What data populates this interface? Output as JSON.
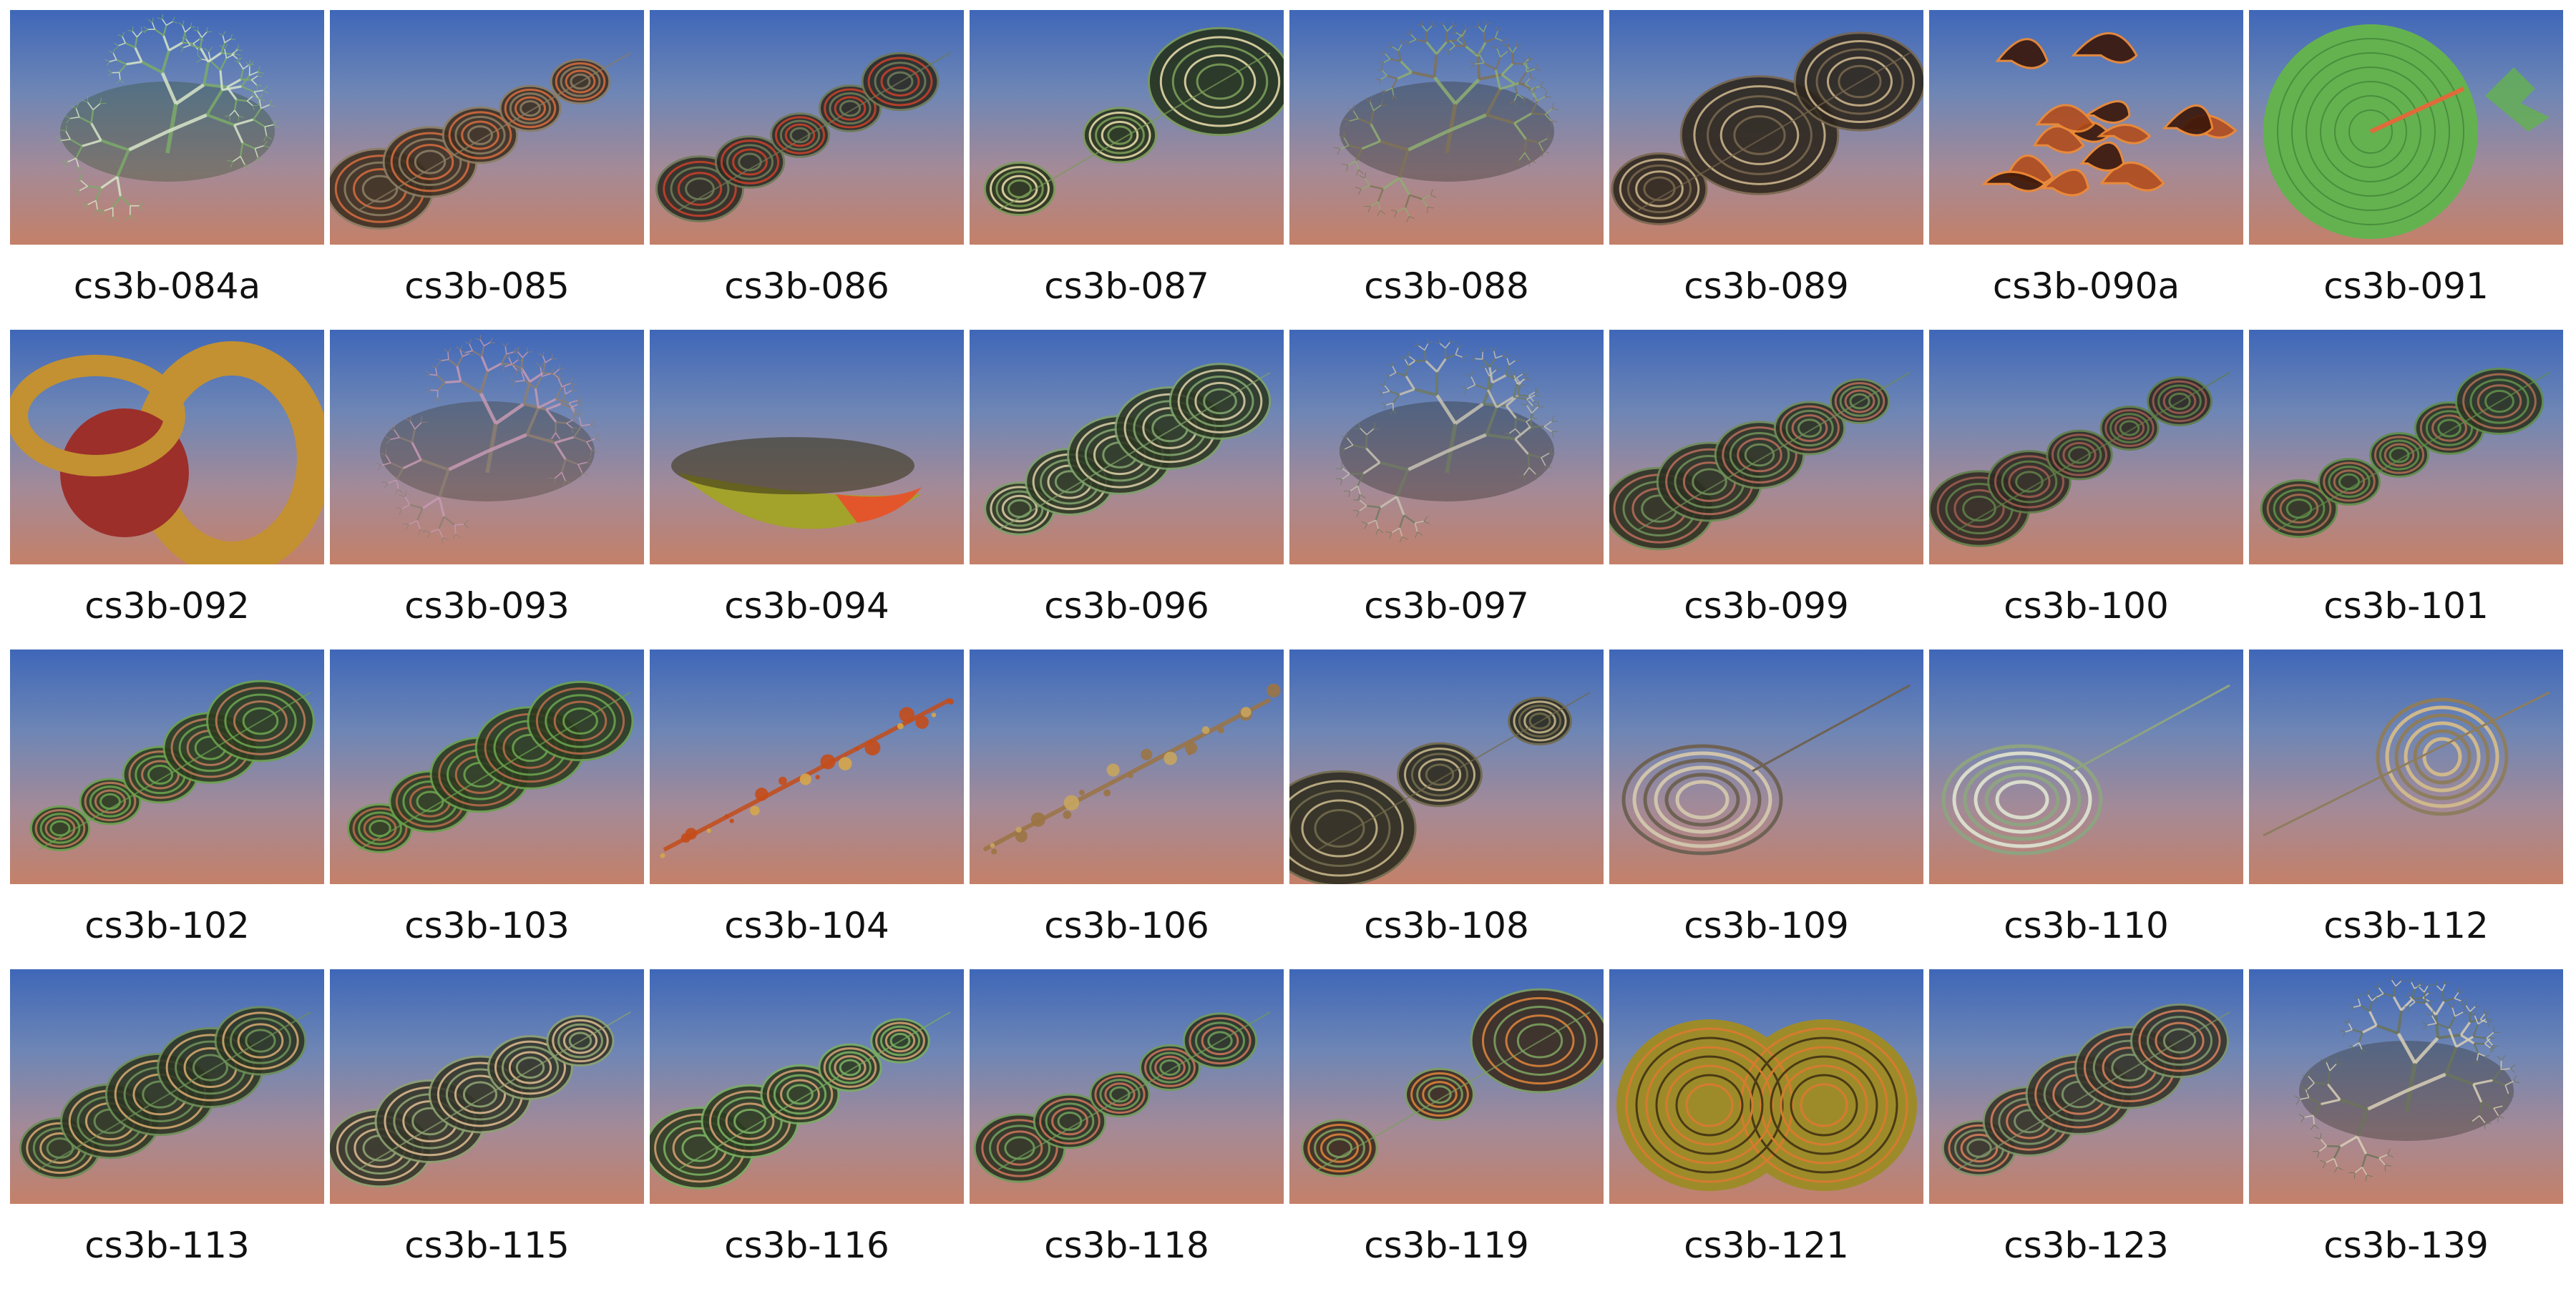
{
  "gallery": {
    "items": [
      {
        "label": "cs3b-084a",
        "palette": [
          "#2f4a24",
          "#7cab6a",
          "#d8e6c8"
        ],
        "shape": "branch-fractal-icon"
      },
      {
        "label": "cs3b-085",
        "palette": [
          "#3d3022",
          "#8b7d63",
          "#cf6a3e"
        ],
        "shape": "disk-stack-icon"
      },
      {
        "label": "cs3b-086",
        "palette": [
          "#2b2b24",
          "#6e7a58",
          "#c4402a"
        ],
        "shape": "disk-stack-icon"
      },
      {
        "label": "cs3b-087",
        "palette": [
          "#26331c",
          "#7a9b58",
          "#e2d7a6"
        ],
        "shape": "swirl-ring-icon"
      },
      {
        "label": "cs3b-088",
        "palette": [
          "#2b2a22",
          "#7f7357",
          "#8fae72"
        ],
        "shape": "branch-fractal-icon"
      },
      {
        "label": "cs3b-089",
        "palette": [
          "#2e271e",
          "#77664d",
          "#c9b38a"
        ],
        "shape": "swirl-ring-icon"
      },
      {
        "label": "cs3b-090a",
        "palette": [
          "#3a1609",
          "#b24d1d",
          "#f08a32"
        ],
        "shape": "flame-fractal-icon"
      },
      {
        "label": "cs3b-091",
        "palette": [
          "#2f6a2b",
          "#63b24f",
          "#e06a3a"
        ],
        "shape": "sphere-icon"
      },
      {
        "label": "cs3b-092",
        "palette": [
          "#5a3a10",
          "#c39131",
          "#9c2f2a"
        ],
        "shape": "torus-icon"
      },
      {
        "label": "cs3b-093",
        "palette": [
          "#3a3426",
          "#8d7f72",
          "#c79ab3"
        ],
        "shape": "branch-fractal-icon"
      },
      {
        "label": "cs3b-094",
        "palette": [
          "#3a351a",
          "#a3a22b",
          "#e3562c"
        ],
        "shape": "bowl-icon"
      },
      {
        "label": "cs3b-096",
        "palette": [
          "#2c3823",
          "#7ea16b",
          "#d4c8a2"
        ],
        "shape": "disk-stack-icon"
      },
      {
        "label": "cs3b-097",
        "palette": [
          "#25251f",
          "#6f7a63",
          "#c7c2b3"
        ],
        "shape": "branch-fractal-icon"
      },
      {
        "label": "cs3b-099",
        "palette": [
          "#2c3122",
          "#6f8d58",
          "#b36a59"
        ],
        "shape": "disk-stack-icon"
      },
      {
        "label": "cs3b-100",
        "palette": [
          "#2f2a22",
          "#5f7e48",
          "#9b5b4f"
        ],
        "shape": "disk-stack-icon"
      },
      {
        "label": "cs3b-101",
        "palette": [
          "#2c3322",
          "#5f8e4a",
          "#a96b52"
        ],
        "shape": "disk-stack-icon"
      },
      {
        "label": "cs3b-102",
        "palette": [
          "#2c3b1f",
          "#6aa14e",
          "#b9795a"
        ],
        "shape": "disk-stack-icon"
      },
      {
        "label": "cs3b-103",
        "palette": [
          "#2c3b1f",
          "#6aa14e",
          "#b56a4a"
        ],
        "shape": "disk-stack-icon"
      },
      {
        "label": "cs3b-104",
        "palette": [
          "#5a2c12",
          "#c44d1a",
          "#d6a64a"
        ],
        "shape": "thin-strand-icon"
      },
      {
        "label": "cs3b-106",
        "palette": [
          "#4d3a22",
          "#9b7444",
          "#c7a55e"
        ],
        "shape": "thin-strand-icon"
      },
      {
        "label": "cs3b-108",
        "palette": [
          "#2d2c20",
          "#716b4c",
          "#c4b488"
        ],
        "shape": "swirl-ring-icon"
      },
      {
        "label": "cs3b-109",
        "palette": [
          "#2c2822",
          "#6e6254",
          "#d0c4ac"
        ],
        "shape": "ring-icon"
      },
      {
        "label": "cs3b-110",
        "palette": [
          "#3a4032",
          "#8ea381",
          "#d9dccc"
        ],
        "shape": "ring-icon"
      },
      {
        "label": "cs3b-112",
        "palette": [
          "#3a3328",
          "#8d7d5e",
          "#cfb88b"
        ],
        "shape": "cone-icon"
      },
      {
        "label": "cs3b-113",
        "palette": [
          "#2c3522",
          "#6d8f58",
          "#d0a56f"
        ],
        "shape": "disk-stack-icon"
      },
      {
        "label": "cs3b-115",
        "palette": [
          "#34362a",
          "#8da171",
          "#d7b68d"
        ],
        "shape": "disk-stack-icon"
      },
      {
        "label": "cs3b-116",
        "palette": [
          "#2d3b22",
          "#79ad62",
          "#cf9d72"
        ],
        "shape": "disk-stack-icon"
      },
      {
        "label": "cs3b-118",
        "palette": [
          "#2c3222",
          "#6f9c5a",
          "#c7735a"
        ],
        "shape": "disk-stack-icon"
      },
      {
        "label": "cs3b-119",
        "palette": [
          "#3b2c20",
          "#7b9e5f",
          "#d8823b"
        ],
        "shape": "swirl-ring-icon"
      },
      {
        "label": "cs3b-121",
        "palette": [
          "#4a3a14",
          "#9d8b2a",
          "#d67b2e"
        ],
        "shape": "blob-icon"
      },
      {
        "label": "cs3b-123",
        "palette": [
          "#35342a",
          "#7e956a",
          "#d07d5a"
        ],
        "shape": "disk-stack-icon"
      },
      {
        "label": "cs3b-139",
        "palette": [
          "#2d2a22",
          "#6b745a",
          "#d9cfb7"
        ],
        "shape": "spiky-fractal-icon"
      }
    ]
  }
}
